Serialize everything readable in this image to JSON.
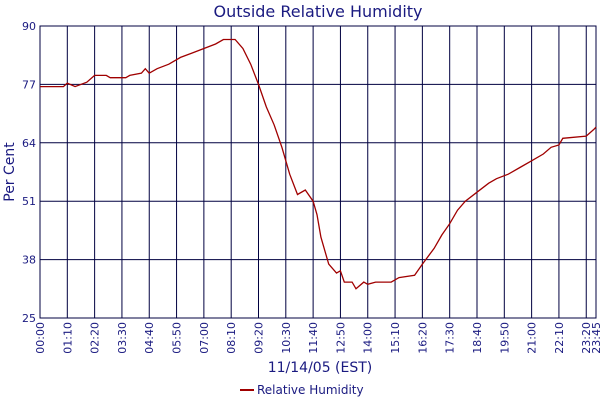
{
  "chart_data": {
    "type": "line",
    "title": "Outside Relative Humidity",
    "y_label": "Per Cent",
    "x_label": "11/14/05 (EST)",
    "x": [
      "00:00",
      "01:00",
      "01:10",
      "01:30",
      "02:00",
      "02:20",
      "02:50",
      "03:00",
      "03:40",
      "03:50",
      "04:20",
      "04:30",
      "04:40",
      "05:00",
      "05:30",
      "06:00",
      "06:30",
      "07:00",
      "07:30",
      "07:50",
      "08:20",
      "08:40",
      "09:00",
      "09:20",
      "09:40",
      "10:00",
      "10:20",
      "10:40",
      "11:00",
      "11:20",
      "11:40",
      "11:50",
      "12:00",
      "12:20",
      "12:40",
      "12:50",
      "13:00",
      "13:20",
      "13:30",
      "13:50",
      "14:00",
      "14:20",
      "15:00",
      "15:20",
      "16:00",
      "16:20",
      "16:50",
      "17:10",
      "17:30",
      "17:50",
      "18:10",
      "18:40",
      "19:10",
      "19:30",
      "20:00",
      "20:30",
      "21:00",
      "21:30",
      "21:50",
      "22:10",
      "22:20",
      "23:20",
      "23:40",
      "23:45"
    ],
    "series": [
      {
        "name": "Relative Humidity",
        "color": "#a00000",
        "values": [
          76.5,
          76.5,
          77.3,
          76.5,
          77.5,
          79,
          79,
          78.5,
          78.5,
          79,
          79.5,
          80.5,
          79.5,
          80.5,
          81.5,
          83,
          84,
          85,
          86,
          87,
          87,
          85,
          81.5,
          77,
          72,
          68,
          63,
          57,
          52.5,
          53.5,
          51,
          48,
          43,
          37,
          35,
          35.5,
          33,
          33,
          31.5,
          33,
          32.5,
          33,
          33,
          34,
          34.5,
          37,
          40.5,
          43.5,
          46,
          49,
          51,
          53,
          55,
          56,
          57,
          58.5,
          60,
          61.5,
          63,
          63.5,
          65,
          65.5,
          67,
          67.5
        ]
      }
    ],
    "xlim": [
      "00:00",
      "23:45"
    ],
    "xticks": [
      "00:00",
      "01:10",
      "02:20",
      "03:30",
      "04:40",
      "05:50",
      "07:00",
      "08:10",
      "09:20",
      "10:30",
      "11:40",
      "12:50",
      "14:00",
      "15:10",
      "16:20",
      "17:30",
      "18:40",
      "19:50",
      "21:00",
      "22:10",
      "23:20",
      "23:45"
    ],
    "ylim": [
      25,
      90
    ],
    "yticks": [
      25,
      38,
      51,
      64,
      77,
      90
    ],
    "grid": true
  }
}
